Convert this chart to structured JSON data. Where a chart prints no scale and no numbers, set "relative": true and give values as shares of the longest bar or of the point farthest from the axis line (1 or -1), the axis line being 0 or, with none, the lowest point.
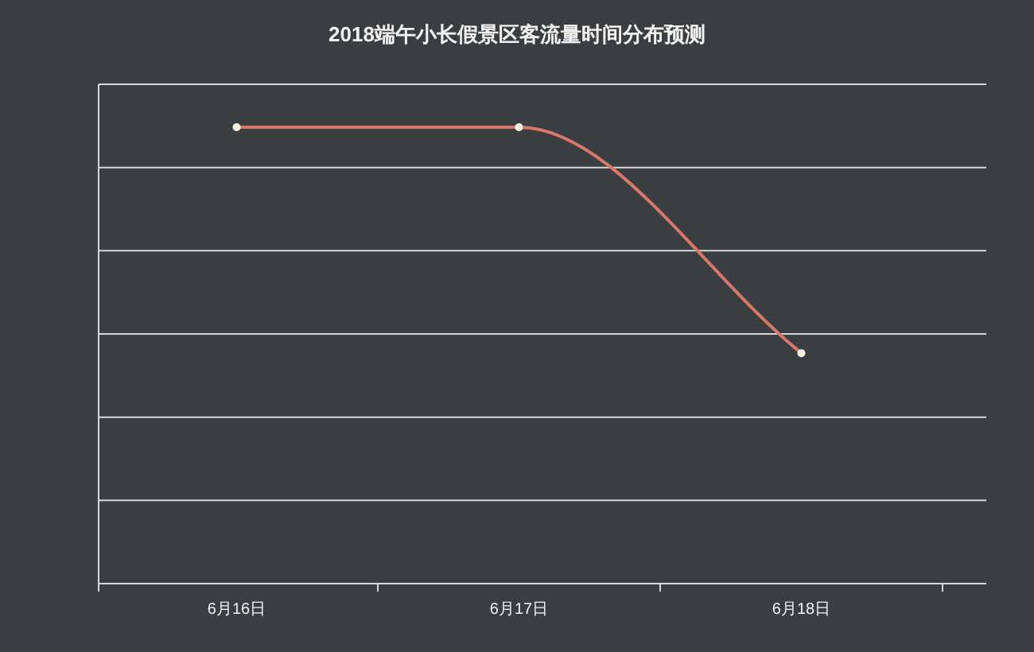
{
  "chart_data": {
    "type": "line",
    "title": "2018端午小长假景区客流量时间分布预测",
    "categories": [
      "6月16日",
      "6月17日",
      "6月18日"
    ],
    "series": [
      {
        "color": "#d9776a",
        "values": [
          1,
          1,
          0.505
        ]
      }
    ],
    "relative": true,
    "grid": "y",
    "marker": "circle",
    "line_style": "solid"
  }
}
